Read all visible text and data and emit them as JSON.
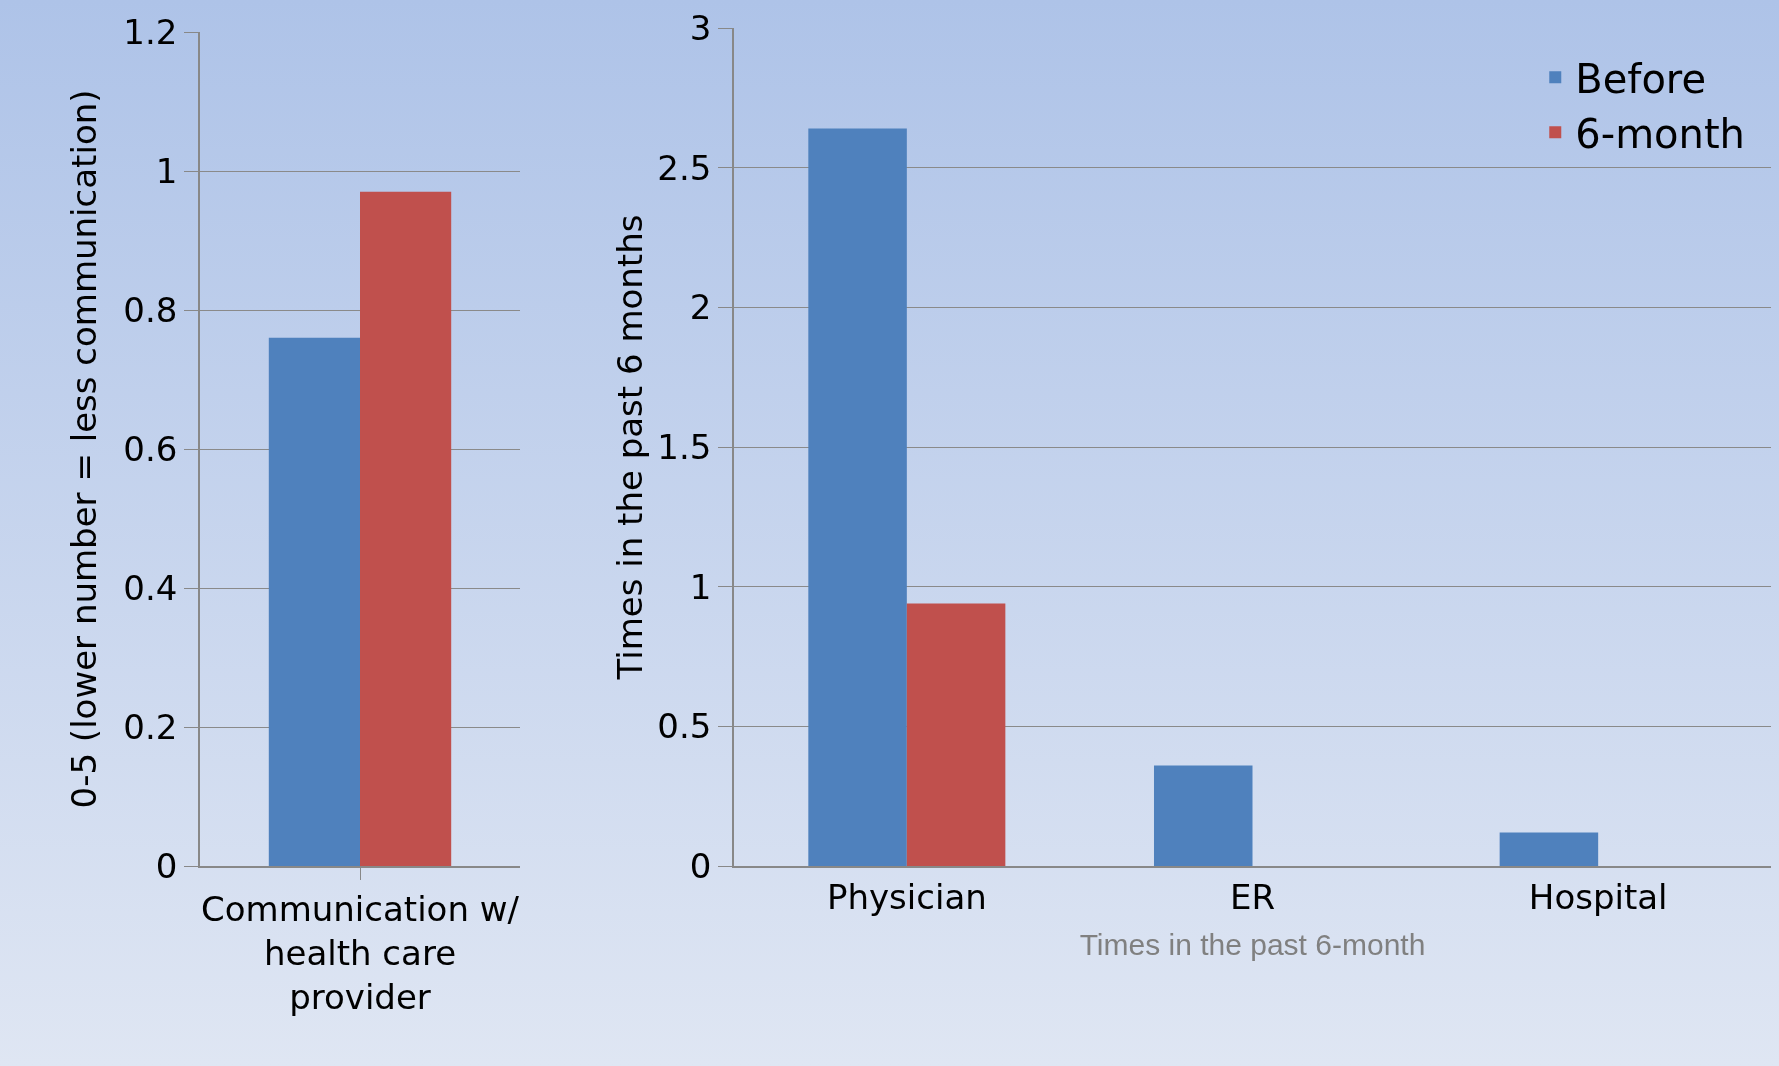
{
  "chart_data": [
    {
      "type": "bar",
      "categories": [
        "Communication w/ health care provider"
      ],
      "ylabel": "0-5 (lower number = less communication)",
      "series": [
        {
          "color": "#4f81bd",
          "values": [
            0.76
          ]
        },
        {
          "color": "#c0504d",
          "values": [
            0.97
          ]
        }
      ],
      "ylim": [
        0,
        1.2
      ],
      "yticks": [
        0,
        0.2,
        0.4,
        0.6,
        0.8,
        1,
        1.2
      ],
      "grid": "y",
      "legend": false
    },
    {
      "type": "bar",
      "categories": [
        "Physician",
        "ER",
        "Hospital"
      ],
      "ylabel": "Times in the past 6 months",
      "xlabel": "Times in the past 6-month",
      "series": [
        {
          "name": "Before",
          "color": "#4f81bd",
          "values": [
            2.64,
            0.36,
            0.12
          ]
        },
        {
          "name": "6-month",
          "color": "#c0504d",
          "values": [
            0.94,
            0,
            0
          ]
        }
      ],
      "ylim": [
        0,
        3
      ],
      "yticks": [
        0,
        0.5,
        1,
        1.5,
        2,
        2.5,
        3
      ],
      "grid": "y",
      "legend": "top right"
    }
  ]
}
